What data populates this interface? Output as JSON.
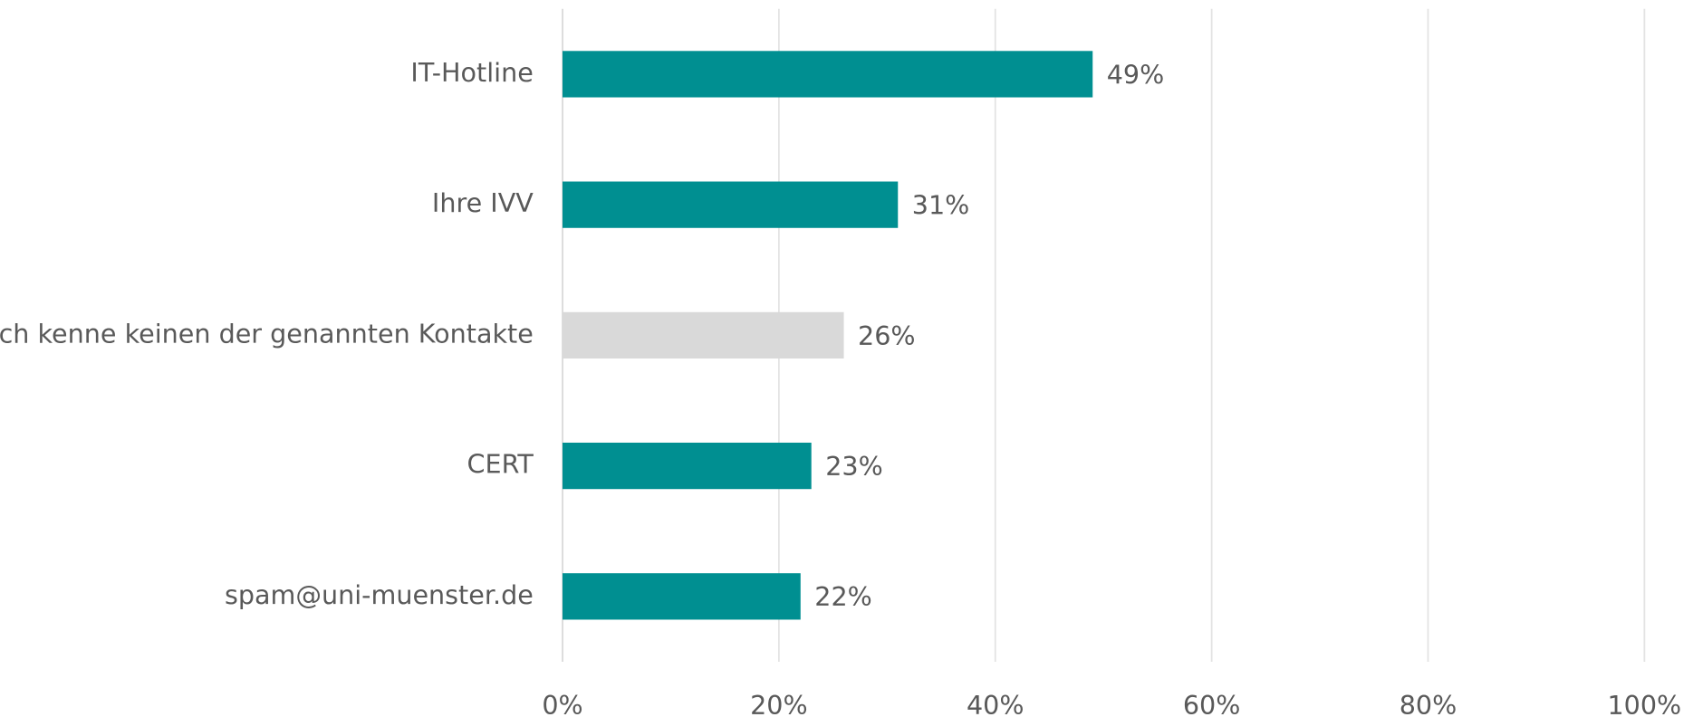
{
  "chart_data": {
    "type": "hbar",
    "categories": [
      "IT-Hotline",
      "Ihre IVV",
      "Ich kenne keinen der genannten Kontakte",
      "CERT",
      "spam@uni-muenster.de"
    ],
    "values": [
      49,
      31,
      26,
      23,
      22
    ],
    "value_labels": [
      "49%",
      "31%",
      "26%",
      "23%",
      "22%"
    ],
    "colors": [
      "#008f91",
      "#008f91",
      "#d9d9d9",
      "#008f91",
      "#008f91"
    ],
    "xlim": [
      0,
      100
    ],
    "xticks": [
      {
        "value": 0,
        "label": "0%"
      },
      {
        "value": 20,
        "label": "20%"
      },
      {
        "value": 40,
        "label": "40%"
      },
      {
        "value": 60,
        "label": "60%"
      },
      {
        "value": 80,
        "label": "80%"
      },
      {
        "value": 100,
        "label": "100%"
      }
    ],
    "grid": true
  }
}
